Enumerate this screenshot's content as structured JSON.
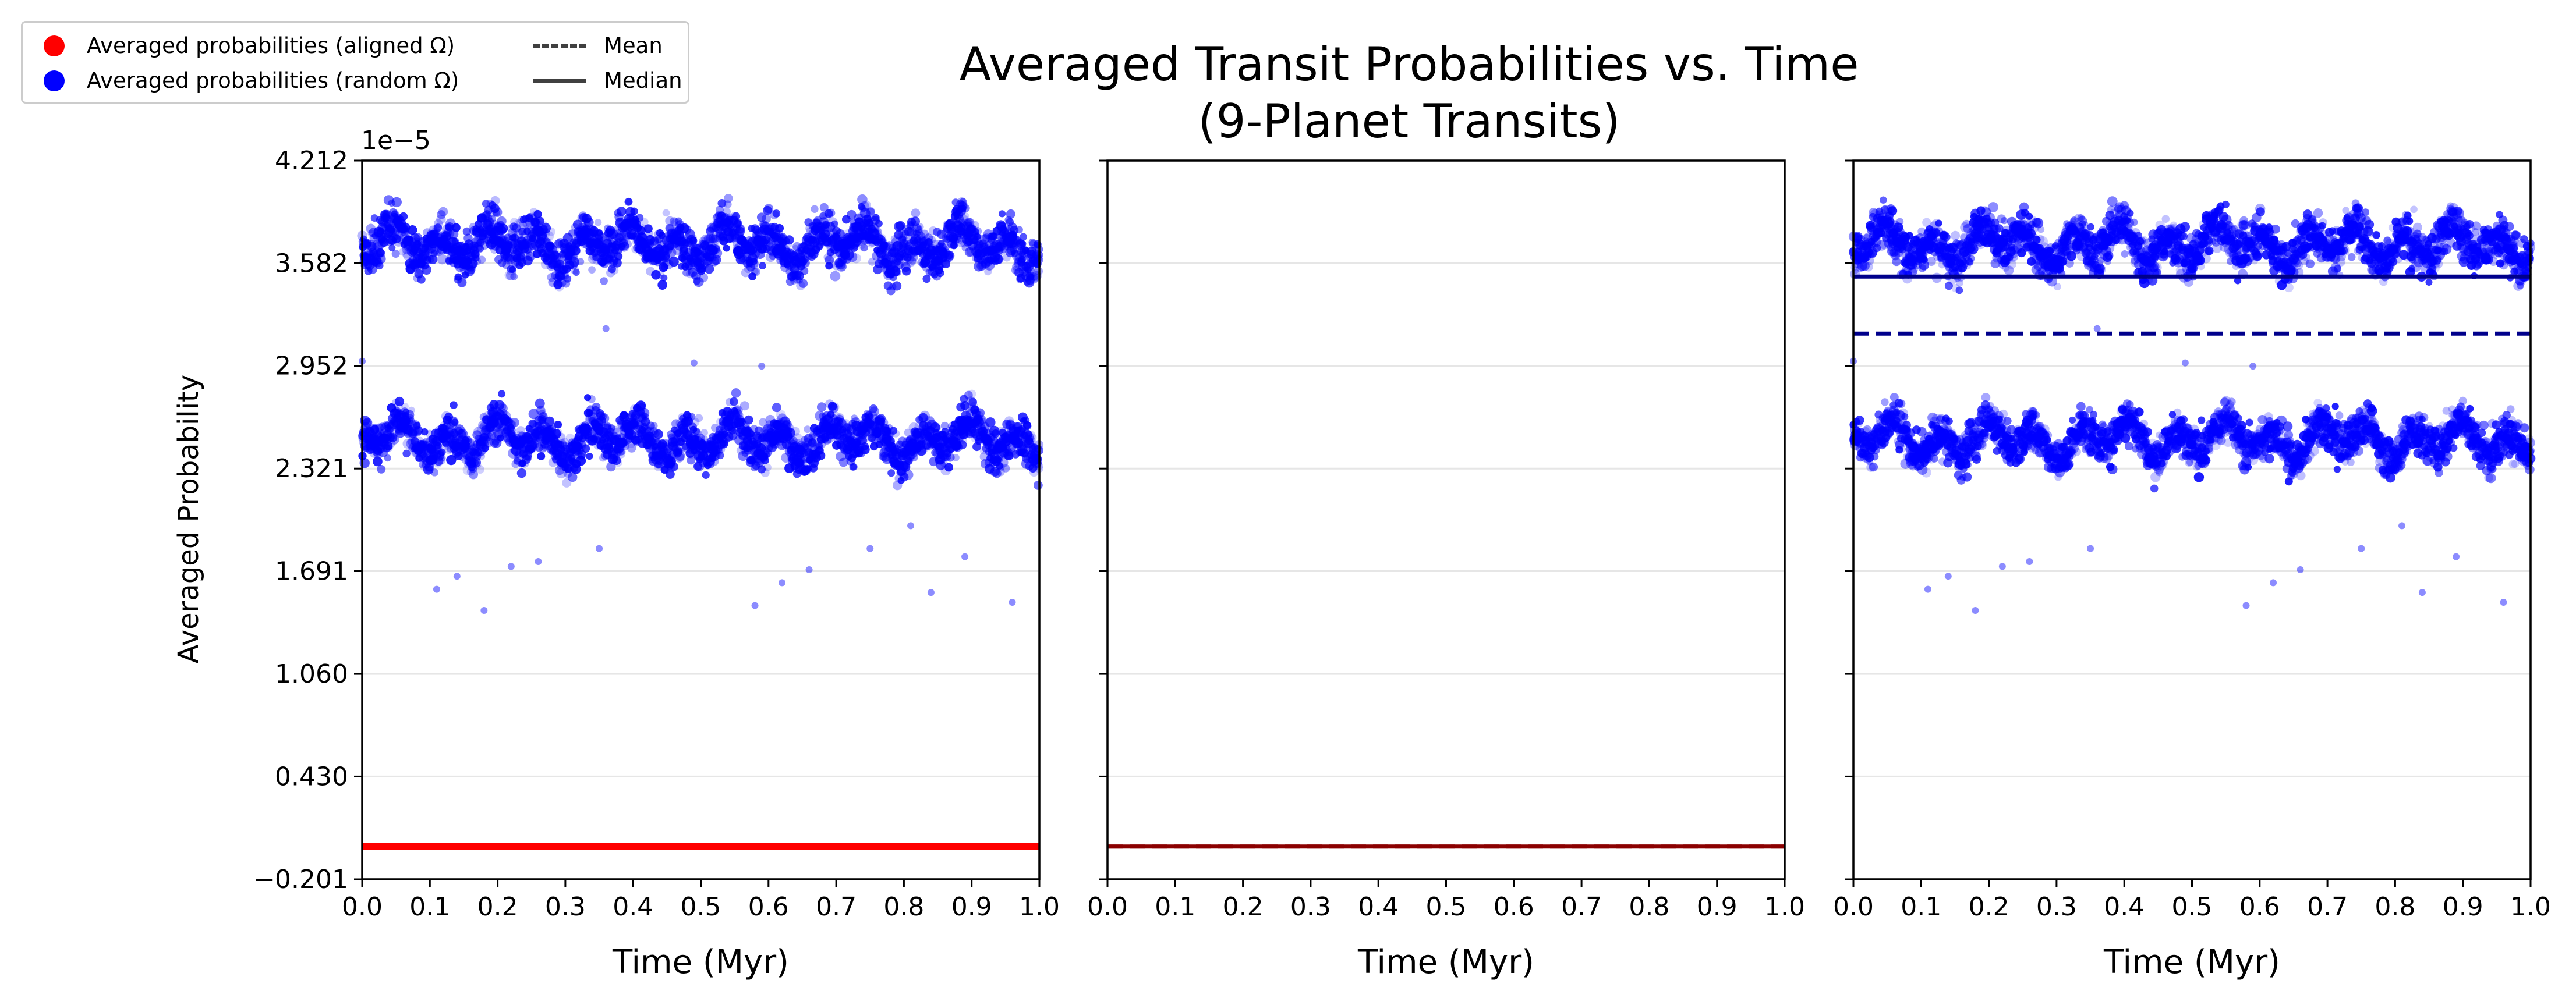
{
  "title_line1": "Averaged Transit Probabilities vs. Time",
  "title_line2": "(9-Planet Transits)",
  "ylabel": "Averaged Probability",
  "xlabel": "Time (Myr)",
  "offset_text": "1e−5",
  "legend": {
    "aligned": "Averaged probabilities (aligned Ω)",
    "random": "Averaged probabilities (random Ω)",
    "mean": "Mean",
    "median": "Median"
  },
  "colors": {
    "aligned": "#ff0000",
    "random": "#0000ff",
    "aligned_line": "#8b0000",
    "random_lines": "#00008b",
    "grid": "#e6e6e6"
  },
  "chart_data": [
    {
      "type": "scatter",
      "panel": "left",
      "xlim": [
        0.0,
        1.0
      ],
      "ylim": [
        -0.201,
        4.212
      ],
      "y_scale_factor": "1e-5",
      "xticks": [
        "0.0",
        "0.1",
        "0.2",
        "0.3",
        "0.4",
        "0.5",
        "0.6",
        "0.7",
        "0.8",
        "0.9",
        "1.0"
      ],
      "yticks": [
        "−0.201",
        "0.430",
        "1.060",
        "1.691",
        "2.321",
        "2.952",
        "3.582",
        "4.212"
      ],
      "grid": "horizontal",
      "series": [
        {
          "name": "Averaged probabilities (aligned Ω)",
          "color": "#ff0000",
          "x_range": [
            0.0,
            1.0
          ],
          "y_value": 0.0,
          "style": "dense points"
        },
        {
          "name": "Averaged probabilities (random Ω)",
          "color": "#0000ff",
          "x_range": [
            0.0,
            1.0
          ],
          "bands": [
            {
              "center": 3.7,
              "spread": 0.18
            },
            {
              "center": 2.5,
              "spread": 0.16
            }
          ],
          "outliers": [
            [
              0.11,
              1.58
            ],
            [
              0.14,
              1.66
            ],
            [
              0.18,
              1.45
            ],
            [
              0.22,
              1.72
            ],
            [
              0.26,
              1.75
            ],
            [
              0.35,
              1.83
            ],
            [
              0.36,
              3.18
            ],
            [
              0.49,
              2.97
            ],
            [
              0.58,
              1.48
            ],
            [
              0.59,
              2.95
            ],
            [
              0.62,
              1.62
            ],
            [
              0.66,
              1.7
            ],
            [
              0.75,
              1.83
            ],
            [
              0.81,
              1.97
            ],
            [
              0.84,
              1.56
            ],
            [
              0.89,
              1.78
            ],
            [
              0.96,
              1.5
            ],
            [
              0.0,
              2.98
            ]
          ]
        }
      ]
    },
    {
      "type": "line",
      "panel": "middle",
      "xlim": [
        0.0,
        1.0
      ],
      "ylim": [
        -0.201,
        4.212
      ],
      "xticks": [
        "0.0",
        "0.1",
        "0.2",
        "0.3",
        "0.4",
        "0.5",
        "0.6",
        "0.7",
        "0.8",
        "0.9",
        "1.0"
      ],
      "grid": "horizontal",
      "series": [
        {
          "name": "Mean (aligned Ω)",
          "color": "#8b0000",
          "style": "dashed",
          "y": 0.0
        },
        {
          "name": "Median (aligned Ω)",
          "color": "#8b0000",
          "style": "solid",
          "y": 0.0
        }
      ]
    },
    {
      "type": "scatter",
      "panel": "right",
      "xlim": [
        0.0,
        1.0
      ],
      "ylim": [
        -0.201,
        4.212
      ],
      "xticks": [
        "0.0",
        "0.1",
        "0.2",
        "0.3",
        "0.4",
        "0.5",
        "0.6",
        "0.7",
        "0.8",
        "0.9",
        "1.0"
      ],
      "grid": "horizontal",
      "series": [
        {
          "name": "Averaged probabilities (random Ω)",
          "color": "#0000ff",
          "x_range": [
            0.0,
            1.0
          ],
          "bands": [
            {
              "center": 3.7,
              "spread": 0.18
            },
            {
              "center": 2.5,
              "spread": 0.16
            }
          ]
        },
        {
          "name": "Mean (random Ω)",
          "color": "#00008b",
          "style": "dashed",
          "y": 3.15
        },
        {
          "name": "Median (random Ω)",
          "color": "#00008b",
          "style": "solid",
          "y": 3.5
        }
      ]
    }
  ]
}
